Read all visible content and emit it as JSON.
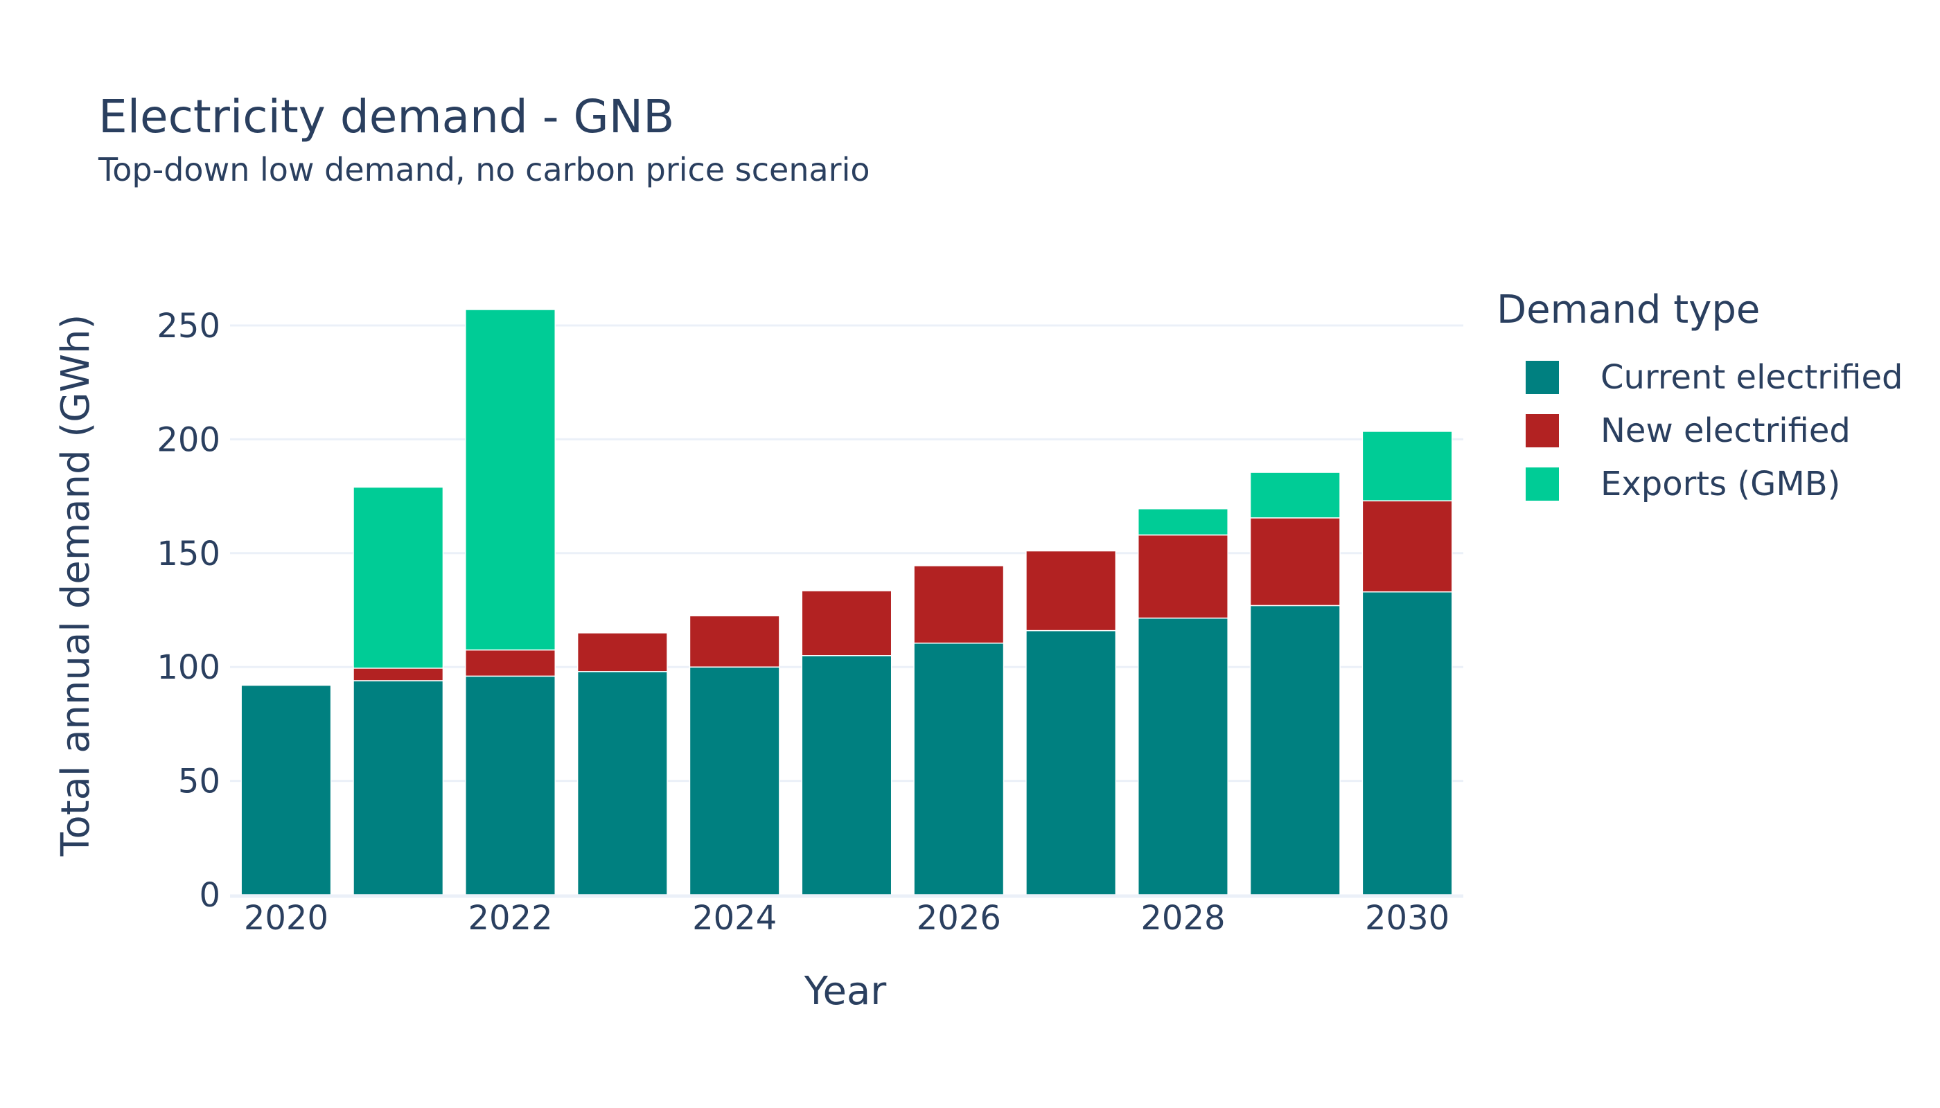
{
  "chart_data": {
    "type": "bar",
    "barmode": "stack",
    "title": "Electricity demand - GNB",
    "subtitle": "Top-down low demand, no carbon price scenario",
    "xlabel": "Year",
    "ylabel": "Total annual demand (GWh)",
    "x": [
      2020,
      2021,
      2022,
      2023,
      2024,
      2025,
      2026,
      2027,
      2028,
      2029,
      2030
    ],
    "x_tick_labels": [
      "2020",
      "2022",
      "2024",
      "2026",
      "2028",
      "2030"
    ],
    "x_tick_values": [
      2020,
      2022,
      2024,
      2026,
      2028,
      2030
    ],
    "y_ticks": [
      0,
      50,
      100,
      150,
      200,
      250
    ],
    "y_tick_labels": [
      "0",
      "50",
      "100",
      "150",
      "200",
      "250"
    ],
    "ylim": [
      0,
      270
    ],
    "grid": true,
    "legend_title": "Demand type",
    "legend_position": "right",
    "series": [
      {
        "name": "Current electrified",
        "color": "#008080",
        "values": [
          92,
          94,
          96,
          98,
          100,
          105,
          110.5,
          116,
          121.5,
          127,
          133
        ]
      },
      {
        "name": "New electrified",
        "color": "#b22222",
        "values": [
          0,
          5.5,
          11.5,
          17,
          22.5,
          28.5,
          34,
          35,
          36.5,
          38.5,
          40
        ]
      },
      {
        "name": "Exports (GMB)",
        "color": "#00cc96",
        "values": [
          0,
          79.5,
          149.5,
          0,
          0,
          0,
          0,
          0,
          11.5,
          20,
          30.5
        ]
      }
    ]
  }
}
